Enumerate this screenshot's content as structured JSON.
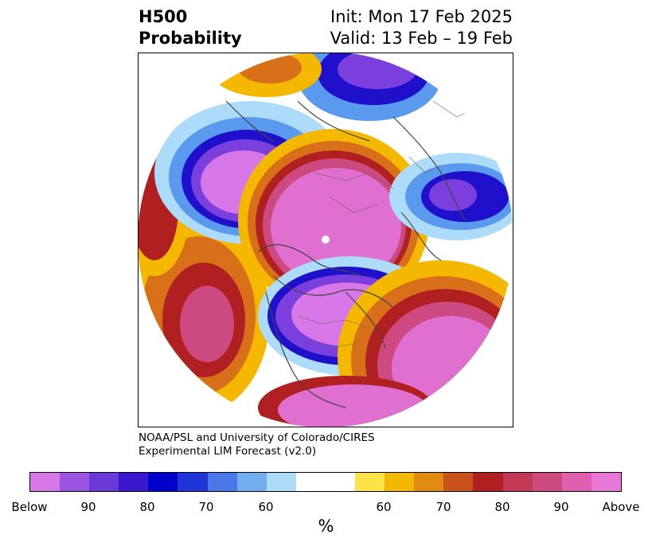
{
  "title": {
    "left_line1": "H500",
    "left_line2": "Probability",
    "right_line1": "Init: Mon 17 Feb 2025",
    "right_line2": "Valid: 13 Feb – 19 Feb"
  },
  "credit": {
    "line1": "NOAA/PSL and University of Colorado/CIRES",
    "line2": "Experimental LIM Forecast (v2.0)"
  },
  "colorbar": {
    "colors": [
      "#d878e8",
      "#9b55e0",
      "#6a3ad8",
      "#3a18d0",
      "#0000cc",
      "#2035d8",
      "#4a78e8",
      "#70aef0",
      "#acdcfa",
      "#ffffff",
      "#ffffff",
      "#ffe14a",
      "#f5b800",
      "#e08a10",
      "#c8541a",
      "#b02020",
      "#c23a55",
      "#cc4a80",
      "#e060b0",
      "#e878d8"
    ],
    "tick_labels": [
      "Below",
      "90",
      "80",
      "70",
      "60",
      "60",
      "70",
      "80",
      "90",
      "Above"
    ],
    "unit": "%"
  },
  "map_palette": {
    "below_core": "#d878e8",
    "below_mid": "#7a3fdc",
    "below_deep": "#1f10cc",
    "below_light": "#5a9aee",
    "neutral": "#ffffff",
    "above_light": "#f5b800",
    "above_mid": "#d8701a",
    "above_deep": "#b02020",
    "above_core": "#e070d0",
    "land_lines": "#444444"
  }
}
